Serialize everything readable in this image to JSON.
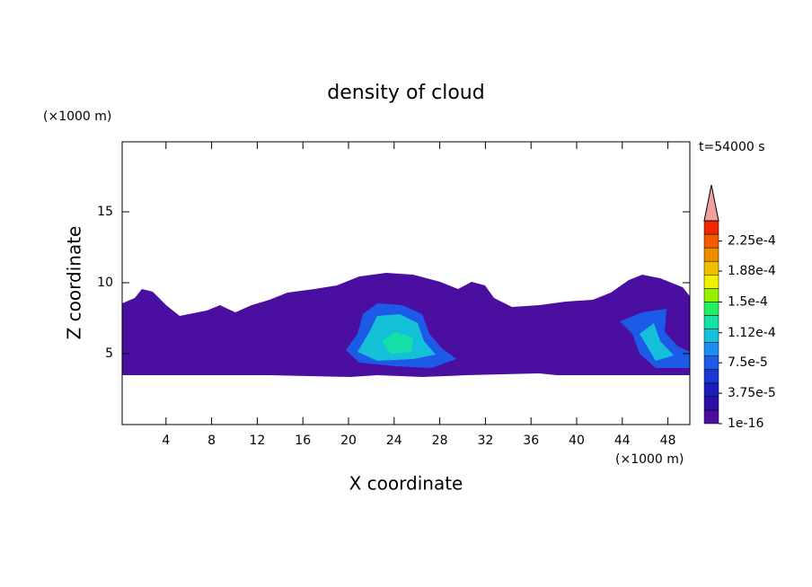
{
  "chart_data": {
    "type": "contour",
    "title": "density of cloud",
    "x_label": "X coordinate",
    "y_label": "Z coordinate",
    "x_unit": "(×1000 m)",
    "y_unit": "(×1000 m)",
    "annotation": "t=54000 s",
    "xlim": [
      0,
      50
    ],
    "ylim": [
      0,
      20
    ],
    "xticks": [
      4,
      8,
      12,
      16,
      20,
      24,
      28,
      32,
      36,
      40,
      44,
      48
    ],
    "yticks": [
      5,
      10,
      15
    ],
    "colorbar": {
      "clim": [
        1e-16,
        0.00025
      ],
      "colors": [
        "#4a0fa0",
        "#2c10a8",
        "#1c1cb8",
        "#1c36d0",
        "#1e5ae8",
        "#1e8cf0",
        "#14c0d8",
        "#14e0a8",
        "#22f060",
        "#96f000",
        "#f0f000",
        "#f0c000",
        "#f08c00",
        "#f05a00",
        "#f02800"
      ],
      "extend_color": "#f0a0a0",
      "ticks": [
        {
          "value": 1e-16,
          "label": "1e-16"
        },
        {
          "value": 3.75e-05,
          "label": "3.75e-5"
        },
        {
          "value": 7.5e-05,
          "label": "7.5e-5"
        },
        {
          "value": 0.000112,
          "label": "1.12e-4"
        },
        {
          "value": 0.00015,
          "label": "1.5e-4"
        },
        {
          "value": 0.000188,
          "label": "1.88e-4"
        },
        {
          "value": 0.000225,
          "label": "2.25e-4"
        }
      ]
    }
  }
}
